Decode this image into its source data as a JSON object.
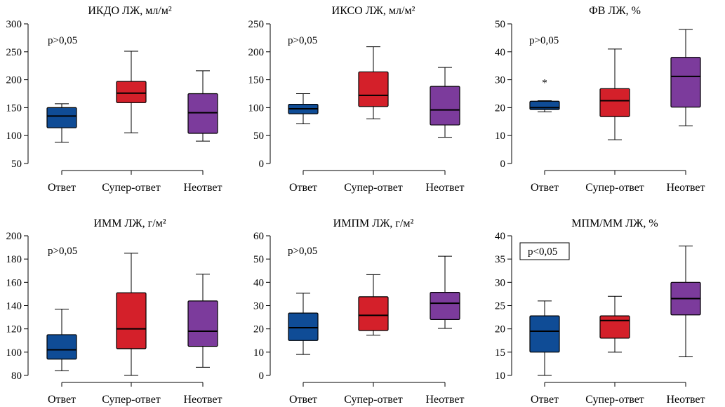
{
  "colors": {
    "otvet": "#0f4c96",
    "super": "#d4202a",
    "neotvet": "#7c3b9c"
  },
  "chart_data": [
    {
      "type": "box",
      "title": "ИКДО ЛЖ, мл/м²",
      "categories": [
        "Ответ",
        "Супер-ответ",
        "Неответ"
      ],
      "ylim": [
        50,
        300
      ],
      "yticks": [
        50,
        100,
        150,
        200,
        250,
        300
      ],
      "annotation": "p>0,05",
      "annotation_boxed": false,
      "boxes": [
        {
          "min": 88,
          "q1": 114,
          "median": 135,
          "q3": 150,
          "max": 157
        },
        {
          "min": 105,
          "q1": 159,
          "median": 176,
          "q3": 197,
          "max": 251
        },
        {
          "min": 90,
          "q1": 104,
          "median": 141,
          "q3": 175,
          "max": 216
        }
      ]
    },
    {
      "type": "box",
      "title": "ИКСО ЛЖ, мл/м²",
      "categories": [
        "Ответ",
        "Супер-ответ",
        "Неответ"
      ],
      "ylim": [
        0,
        250
      ],
      "yticks": [
        0,
        50,
        100,
        150,
        200,
        250
      ],
      "annotation": "p>0,05",
      "annotation_boxed": false,
      "boxes": [
        {
          "min": 71,
          "q1": 89,
          "median": 98,
          "q3": 106,
          "max": 125
        },
        {
          "min": 80,
          "q1": 102,
          "median": 122,
          "q3": 164,
          "max": 209
        },
        {
          "min": 47,
          "q1": 69,
          "median": 96,
          "q3": 138,
          "max": 172
        }
      ]
    },
    {
      "type": "box",
      "title": "ФВ ЛЖ, %",
      "categories": [
        "Ответ",
        "Супер-ответ",
        "Неответ"
      ],
      "ylim": [
        0,
        50
      ],
      "yticks": [
        0,
        10,
        20,
        30,
        40,
        50
      ],
      "annotation": "p>0,05",
      "annotation_boxed": false,
      "boxes": [
        {
          "min": 18.5,
          "q1": 19.3,
          "median": 20,
          "q3": 22.3,
          "max": 22.5,
          "outliers": [
            30
          ]
        },
        {
          "min": 8.5,
          "q1": 16.8,
          "median": 22.5,
          "q3": 26.8,
          "max": 41
        },
        {
          "min": 13.5,
          "q1": 20.2,
          "median": 31.2,
          "q3": 38,
          "max": 48
        }
      ]
    },
    {
      "type": "box",
      "title": "ИММ ЛЖ, г/м²",
      "categories": [
        "Ответ",
        "Супер-ответ",
        "Неответ"
      ],
      "ylim": [
        80,
        200
      ],
      "yticks": [
        80,
        100,
        120,
        140,
        160,
        180,
        200
      ],
      "annotation": "p>0,05",
      "annotation_boxed": false,
      "boxes": [
        {
          "min": 84,
          "q1": 94,
          "median": 102,
          "q3": 115,
          "max": 137
        },
        {
          "min": 80,
          "q1": 103,
          "median": 120,
          "q3": 151,
          "max": 185
        },
        {
          "min": 87,
          "q1": 105,
          "median": 118,
          "q3": 144,
          "max": 167
        }
      ]
    },
    {
      "type": "box",
      "title": "ИМПМ ЛЖ, г/м²",
      "categories": [
        "Ответ",
        "Супер-ответ",
        "Неответ"
      ],
      "ylim": [
        0,
        60
      ],
      "yticks": [
        0,
        10,
        20,
        30,
        40,
        50,
        60
      ],
      "annotation": "p>0,05",
      "annotation_boxed": false,
      "boxes": [
        {
          "min": 9,
          "q1": 15,
          "median": 20.5,
          "q3": 26.8,
          "max": 35.3
        },
        {
          "min": 17.3,
          "q1": 19.3,
          "median": 25.8,
          "q3": 33.8,
          "max": 43.3
        },
        {
          "min": 20.2,
          "q1": 24,
          "median": 31,
          "q3": 35.7,
          "max": 51.2
        }
      ]
    },
    {
      "type": "box",
      "title": "МПМ/ММ ЛЖ, %",
      "categories": [
        "Ответ",
        "Супер-ответ",
        "Неответ"
      ],
      "ylim": [
        10,
        40
      ],
      "yticks": [
        10,
        15,
        20,
        25,
        30,
        35,
        40
      ],
      "annotation": "p<0,05",
      "annotation_boxed": true,
      "boxes": [
        {
          "min": 10,
          "q1": 15,
          "median": 19.5,
          "q3": 22.8,
          "max": 26
        },
        {
          "min": 15,
          "q1": 18,
          "median": 21.8,
          "q3": 22.8,
          "max": 27
        },
        {
          "min": 14,
          "q1": 23,
          "median": 26.5,
          "q3": 30,
          "max": 37.8
        }
      ]
    }
  ]
}
